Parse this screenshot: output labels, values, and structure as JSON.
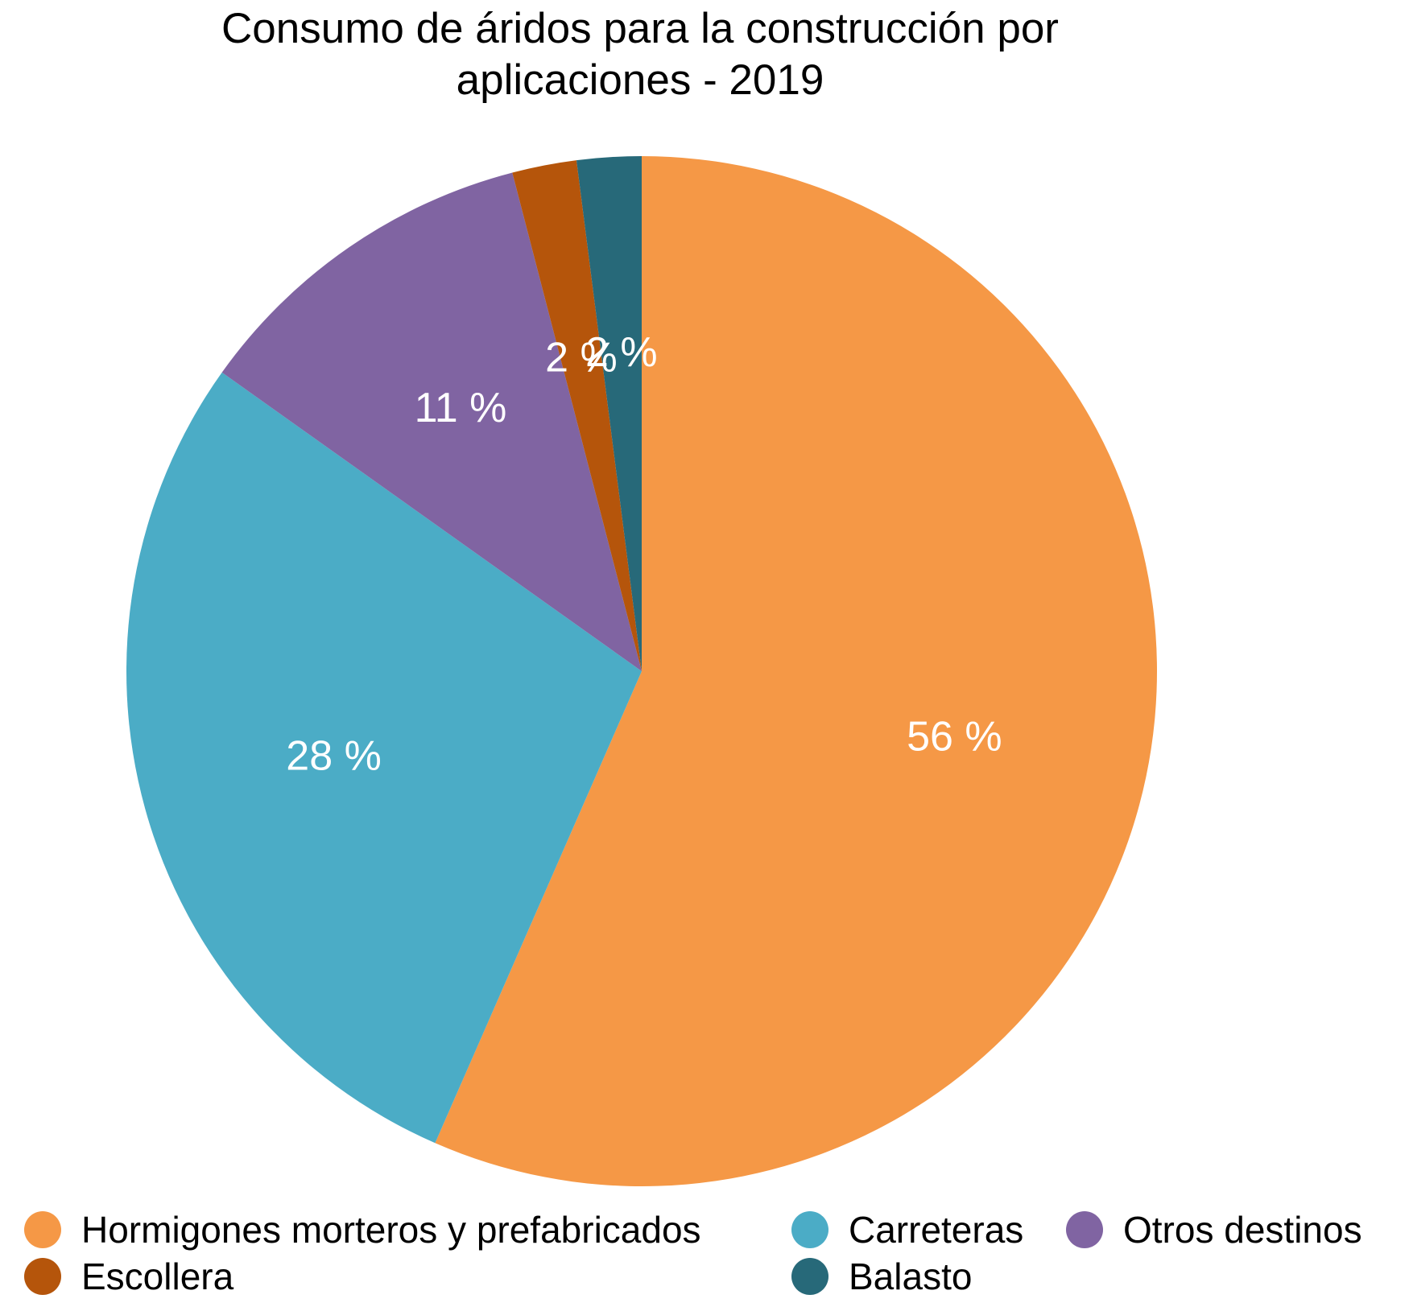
{
  "chart_data": {
    "type": "pie",
    "title": "Consumo de áridos para la construcción por aplicaciones - 2019",
    "title_lines": [
      "Consumo de áridos para la construcción por",
      "aplicaciones - 2019"
    ],
    "categories": [
      "Hormigones morteros y prefabricados",
      "Carreteras",
      "Otros destinos",
      "Escollera",
      "Balasto"
    ],
    "values": [
      56,
      28,
      11,
      2,
      2
    ],
    "labels": [
      "56 %",
      "28 %",
      "11 %",
      "2 %",
      "2 %"
    ],
    "colors": [
      "#F59846",
      "#4BACC6",
      "#8064A2",
      "#B5550B",
      "#276979"
    ],
    "start_angle_deg": 0,
    "direction": "clockwise",
    "legend_position": "bottom"
  }
}
